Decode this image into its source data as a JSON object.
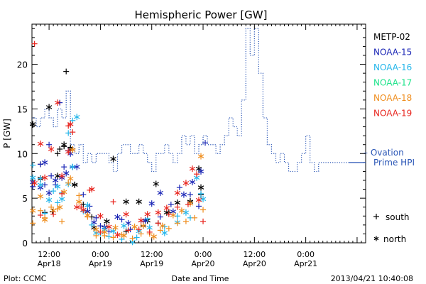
{
  "chart_data": {
    "type": "scatter",
    "title": "Hemispheric Power [GW]",
    "ylabel": "P [GW]",
    "xlabel": "Date and Time",
    "ylim": [
      0,
      24.5
    ],
    "xlim_hours": [
      -4,
      74
    ],
    "y_ticks": [
      0,
      5,
      10,
      15,
      20
    ],
    "y_tick_labels": [
      "0",
      "5",
      "10",
      "15",
      "20"
    ],
    "x_ticks": [
      {
        "hour": 0,
        "time": "12:00",
        "date": "Apr18"
      },
      {
        "hour": 12,
        "time": "0:00",
        "date": "Apr19"
      },
      {
        "hour": 24,
        "time": "12:00",
        "date": "Apr19"
      },
      {
        "hour": 36,
        "time": "0:00",
        "date": "Apr20"
      },
      {
        "hour": 48,
        "time": "12:00",
        "date": "Apr20"
      },
      {
        "hour": 60,
        "time": "0:00",
        "date": "Apr21"
      }
    ],
    "marker_legend": {
      "south": "south",
      "north": "north"
    },
    "series": [
      {
        "name": "METP-02",
        "color": "#000000",
        "south": [
          [
            -3.8,
            13.2
          ],
          [
            -2,
            8.8
          ],
          [
            -1,
            3.4
          ],
          [
            0.8,
            3.5
          ],
          [
            2,
            10
          ],
          [
            2.5,
            10.5
          ],
          [
            4,
            19.2
          ],
          [
            3.5,
            10.8
          ],
          [
            5,
            10.7
          ],
          [
            6,
            6.5
          ],
          [
            8,
            4.3
          ],
          [
            10,
            2.9
          ],
          [
            13,
            1.8
          ],
          [
            18,
            1.3
          ],
          [
            22,
            1.9
          ],
          [
            25.5,
            2.2
          ],
          [
            28,
            3.4
          ],
          [
            33,
            4.7
          ],
          [
            35.5,
            5.4
          ]
        ],
        "north": [
          [
            -3.8,
            13.3
          ],
          [
            -2,
            7.2
          ],
          [
            0,
            15.2
          ],
          [
            2,
            7.5
          ],
          [
            3.5,
            11
          ],
          [
            5,
            10.5
          ],
          [
            6,
            6.5
          ],
          [
            9,
            3.5
          ],
          [
            10.5,
            1.7
          ],
          [
            13.5,
            2.4
          ],
          [
            15,
            9.4
          ],
          [
            18,
            4.6
          ],
          [
            21,
            4.6
          ],
          [
            23,
            2.5
          ],
          [
            25,
            6.6
          ],
          [
            27.5,
            3.4
          ],
          [
            30,
            4.5
          ],
          [
            33,
            4.6
          ],
          [
            35,
            8.3
          ],
          [
            35.5,
            6.2
          ]
        ]
      },
      {
        "name": "NOAA-15",
        "color": "#1c27b6",
        "south": [
          [
            -3.8,
            6.3
          ],
          [
            -2,
            8.8
          ],
          [
            -1,
            6.5
          ],
          [
            0,
            11
          ],
          [
            0.5,
            7.5
          ],
          [
            1.5,
            6.5
          ],
          [
            2.5,
            15.7
          ],
          [
            3.5,
            8.5
          ],
          [
            4.5,
            10.3
          ],
          [
            5.5,
            8.5
          ],
          [
            8,
            5.4
          ],
          [
            9.5,
            4.1
          ],
          [
            11,
            2.8
          ],
          [
            12,
            1.9
          ],
          [
            14,
            1.3
          ],
          [
            17,
            2.6
          ],
          [
            19,
            1.5
          ],
          [
            22,
            2.4
          ],
          [
            26,
            2.9
          ],
          [
            28.5,
            4.3
          ],
          [
            30.5,
            6.2
          ],
          [
            33,
            5.4
          ],
          [
            35,
            4.1
          ],
          [
            36.5,
            11.2
          ]
        ],
        "north": [
          [
            -3.8,
            6.8
          ],
          [
            -2,
            6.2
          ],
          [
            -1,
            9
          ],
          [
            0,
            5.6
          ],
          [
            1.5,
            7
          ],
          [
            3,
            7.3
          ],
          [
            4,
            7.8
          ],
          [
            5,
            10
          ],
          [
            6.5,
            8.5
          ],
          [
            9,
            3.5
          ],
          [
            10.5,
            2.3
          ],
          [
            13,
            1.7
          ],
          [
            16,
            2.9
          ],
          [
            18.5,
            2.2
          ],
          [
            22.5,
            2.5
          ],
          [
            24,
            4.4
          ],
          [
            26,
            5.6
          ],
          [
            29,
            3.5
          ],
          [
            31.5,
            5.4
          ],
          [
            33.5,
            6.8
          ],
          [
            35.5,
            8
          ]
        ]
      },
      {
        "name": "NOAA-16",
        "color": "#24b6ea",
        "south": [
          [
            -3.8,
            8.7
          ],
          [
            -2,
            7.2
          ],
          [
            -1,
            3.3
          ],
          [
            1,
            5.8
          ],
          [
            2,
            4.5
          ],
          [
            3,
            5.6
          ],
          [
            4.5,
            12.3
          ],
          [
            5.5,
            13.7
          ],
          [
            8,
            3.5
          ],
          [
            10,
            2
          ],
          [
            12,
            1
          ],
          [
            14,
            0.7
          ],
          [
            17,
            0.4
          ],
          [
            20.5,
            0.6
          ],
          [
            23,
            2.7
          ],
          [
            27,
            1.8
          ],
          [
            30,
            3
          ],
          [
            33,
            2.8
          ],
          [
            35.5,
            5.5
          ]
        ],
        "north": [
          [
            -3.8,
            7.3
          ],
          [
            -2,
            6.5
          ],
          [
            0,
            4.8
          ],
          [
            2,
            6.3
          ],
          [
            3,
            4.9
          ],
          [
            4.5,
            6.6
          ],
          [
            5.5,
            8.5
          ],
          [
            6.5,
            14.1
          ],
          [
            9,
            4.2
          ],
          [
            11,
            1.1
          ],
          [
            13,
            1.5
          ],
          [
            15,
            1.3
          ],
          [
            17.5,
            1.9
          ],
          [
            19.5,
            0.1
          ],
          [
            21,
            1.3
          ],
          [
            23.5,
            1.7
          ],
          [
            27,
            1.1
          ],
          [
            30,
            2.3
          ],
          [
            32,
            3.4
          ],
          [
            34.5,
            7.3
          ],
          [
            36,
            4.9
          ]
        ]
      },
      {
        "name": "NOAA-17",
        "color": "#1de38a",
        "south": [],
        "north": []
      },
      {
        "name": "NOAA-18",
        "color": "#ef8e1f",
        "south": [
          [
            -3.8,
            2.2
          ],
          [
            -2,
            3.6
          ],
          [
            -1,
            2.8
          ],
          [
            0.5,
            4
          ],
          [
            2,
            3.8
          ],
          [
            3,
            2.4
          ],
          [
            4.5,
            6.7
          ],
          [
            5.5,
            10.5
          ],
          [
            7,
            5.3
          ],
          [
            9,
            2.9
          ],
          [
            11,
            0.8
          ],
          [
            13,
            0.8
          ],
          [
            15,
            0.6
          ],
          [
            17,
            0.9
          ],
          [
            19.5,
            0.5
          ],
          [
            21.5,
            1
          ],
          [
            23.5,
            1
          ],
          [
            26,
            1.4
          ],
          [
            28,
            1.6
          ],
          [
            30,
            2.2
          ],
          [
            32,
            2.4
          ],
          [
            34,
            2.8
          ],
          [
            36,
            3.7
          ]
        ],
        "north": [
          [
            -3.8,
            3.6
          ],
          [
            -2,
            5.2
          ],
          [
            -1,
            2.6
          ],
          [
            1,
            3.6
          ],
          [
            2.5,
            4
          ],
          [
            3.5,
            5.7
          ],
          [
            5,
            7.2
          ],
          [
            5.5,
            10.4
          ],
          [
            7,
            4.6
          ],
          [
            9,
            3.1
          ],
          [
            11,
            1.5
          ],
          [
            13,
            1.2
          ],
          [
            15.5,
            1.7
          ],
          [
            17.5,
            0.8
          ],
          [
            20,
            1.8
          ],
          [
            22,
            1.9
          ],
          [
            24.5,
            0.7
          ],
          [
            26.5,
            1.9
          ],
          [
            29,
            3.1
          ],
          [
            31,
            3.6
          ],
          [
            33,
            4.4
          ],
          [
            35.5,
            9.7
          ]
        ]
      },
      {
        "name": "NOAA-19",
        "color": "#e8251e",
        "south": [
          [
            -3.4,
            22.3
          ],
          [
            -2,
            3.1
          ],
          [
            1,
            3.2
          ],
          [
            3,
            5.5
          ],
          [
            4.5,
            13.1
          ],
          [
            5.5,
            12.4
          ],
          [
            7.5,
            4
          ],
          [
            9.5,
            5.9
          ],
          [
            12,
            1.2
          ],
          [
            15,
            4.6
          ],
          [
            18.5,
            1.4
          ],
          [
            21,
            1.5
          ],
          [
            23.5,
            1.2
          ],
          [
            25.5,
            2.2
          ],
          [
            28,
            3.2
          ],
          [
            30,
            4
          ],
          [
            32.5,
            4.3
          ],
          [
            34.5,
            7.7
          ],
          [
            36,
            2.4
          ]
        ],
        "north": [
          [
            -3.4,
            6.7
          ],
          [
            -2,
            11.1
          ],
          [
            -1,
            7.3
          ],
          [
            0.5,
            10.5
          ],
          [
            2,
            15.7
          ],
          [
            3,
            7.5
          ],
          [
            4.5,
            10.2
          ],
          [
            5,
            13.3
          ],
          [
            6.5,
            4
          ],
          [
            8,
            3.7
          ],
          [
            10,
            6
          ],
          [
            12,
            3
          ],
          [
            14,
            1.8
          ],
          [
            16,
            0.9
          ],
          [
            18,
            3.2
          ],
          [
            21.5,
            2.5
          ],
          [
            23,
            3.2
          ],
          [
            25.5,
            3.4
          ],
          [
            27.5,
            3.9
          ],
          [
            30,
            5.6
          ],
          [
            32,
            6.7
          ],
          [
            33.5,
            8.3
          ],
          [
            35,
            4.8
          ]
        ]
      }
    ],
    "ovation": {
      "name": "Ovation Prime HPI",
      "legend_prefix": "–",
      "legend_line1": "Ovation",
      "legend_line2": "Prime HPI",
      "color": "#2a56b6",
      "steps": [
        [
          -4,
          14
        ],
        [
          -3,
          13
        ],
        [
          -2,
          14
        ],
        [
          -1,
          15
        ],
        [
          0,
          14
        ],
        [
          1,
          13
        ],
        [
          2,
          15
        ],
        [
          3,
          14
        ],
        [
          4,
          17
        ],
        [
          5,
          11
        ],
        [
          6,
          10
        ],
        [
          7,
          11
        ],
        [
          8,
          9
        ],
        [
          9,
          10
        ],
        [
          10,
          9
        ],
        [
          11,
          10
        ],
        [
          13,
          10
        ],
        [
          14,
          9
        ],
        [
          15,
          8
        ],
        [
          16,
          10
        ],
        [
          17,
          11
        ],
        [
          19,
          10
        ],
        [
          21,
          11
        ],
        [
          22,
          10
        ],
        [
          23,
          9
        ],
        [
          24,
          8
        ],
        [
          25,
          10
        ],
        [
          27,
          11
        ],
        [
          28,
          10
        ],
        [
          29,
          9
        ],
        [
          30,
          10
        ],
        [
          31,
          12
        ],
        [
          32,
          11
        ],
        [
          33,
          12
        ],
        [
          34,
          10
        ],
        [
          35,
          11
        ],
        [
          36,
          12
        ],
        [
          37,
          11
        ],
        [
          38,
          11
        ],
        [
          39,
          10
        ],
        [
          40,
          11
        ],
        [
          41,
          12
        ],
        [
          42,
          14
        ],
        [
          43,
          13
        ],
        [
          44,
          12
        ],
        [
          45,
          16
        ],
        [
          46,
          24
        ],
        [
          47,
          21
        ],
        [
          48,
          24
        ],
        [
          49,
          19
        ],
        [
          50,
          14
        ],
        [
          51,
          11
        ],
        [
          52,
          10
        ],
        [
          53,
          9
        ],
        [
          54,
          10
        ],
        [
          55,
          9
        ],
        [
          56,
          8
        ],
        [
          57,
          8
        ],
        [
          58,
          9
        ],
        [
          59,
          10
        ],
        [
          60,
          12
        ],
        [
          61,
          9
        ],
        [
          62,
          8
        ],
        [
          63,
          9
        ],
        [
          64,
          9
        ],
        [
          70,
          9
        ]
      ],
      "end_x": 74
    },
    "grid": false,
    "legend_position": "right"
  },
  "footer": {
    "plot_credit": "Plot: CCMC",
    "timestamp": "2013/04/21 10:40:08"
  }
}
